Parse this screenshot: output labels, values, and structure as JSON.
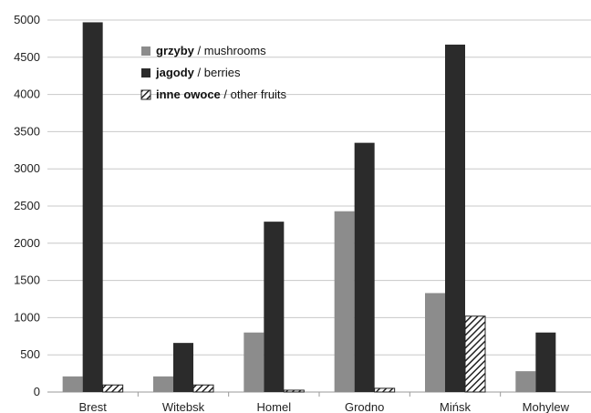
{
  "chart_data": {
    "type": "bar",
    "categories": [
      "Brest",
      "Witebsk",
      "Homel",
      "Grodno",
      "Mińsk",
      "Mohylew"
    ],
    "series": [
      {
        "name": "grzyby / mushrooms",
        "name_bold": "grzyby",
        "name_rest": " / mushrooms",
        "color": "#8c8c8c",
        "pattern": "solid",
        "values": [
          210,
          210,
          800,
          2430,
          1330,
          280
        ]
      },
      {
        "name": "jagody / berries",
        "name_bold": "jagody",
        "name_rest": " / berries",
        "color": "#2b2b2b",
        "pattern": "solid",
        "values": [
          4970,
          660,
          2290,
          3350,
          4670,
          800
        ]
      },
      {
        "name": "inne owoce / other fruits",
        "name_bold": "inne owoce",
        "name_rest": " / other fruits",
        "color": "#333333",
        "pattern": "hatch",
        "values": [
          95,
          95,
          25,
          50,
          1020,
          0
        ]
      }
    ],
    "yticks": [
      "0",
      "500",
      "1000",
      "1500",
      "2000",
      "2500",
      "3000",
      "3500",
      "4000",
      "4500",
      "5000"
    ],
    "ylim": [
      0,
      5000
    ],
    "grid": true,
    "legend_position": "top-left"
  }
}
